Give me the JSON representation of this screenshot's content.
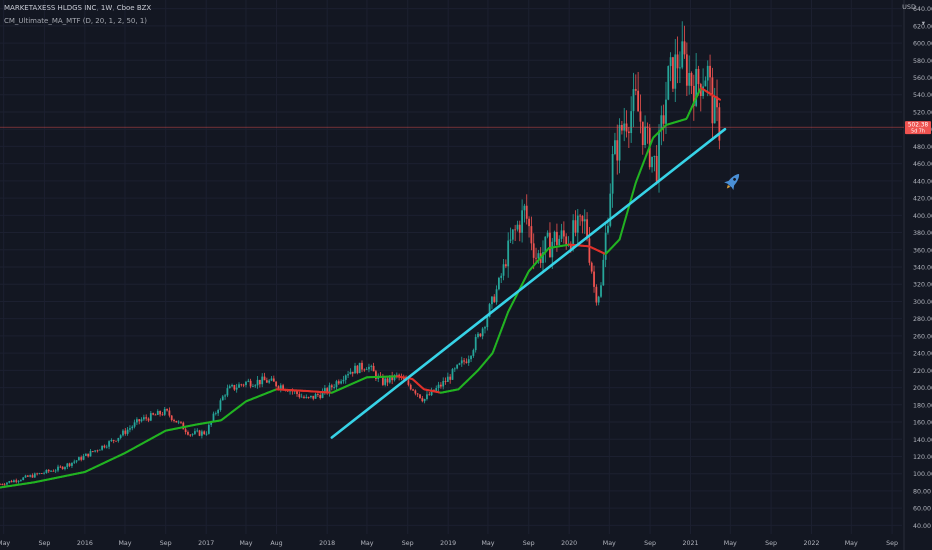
{
  "header": {
    "symbol": "MARKETAXESS HLDGS INC",
    "interval": "1W",
    "exchange": "Cboe BZX",
    "indicator": "CM_Ultimate_MA_MTF (D, 20, 1, 2, 50, 1)"
  },
  "price_axis": {
    "currency": "USD",
    "scale_control": "▾"
  },
  "colors": {
    "background": "#131722",
    "grid": "#1c2030",
    "up_candle": "#26a69a",
    "down_candle": "#ef5350",
    "ma_rising": "#22b322",
    "ma_falling": "#e0312b",
    "trendline": "#37d3e7",
    "current_price_line": "#ef5350",
    "rocket": "#4a8fd6"
  },
  "chart_data": {
    "type": "candlestick",
    "y_axis": {
      "labels": [
        "640.00",
        "620.00",
        "600.00",
        "580.00",
        "560.00",
        "540.00",
        "520.00",
        "500.00",
        "480.00",
        "460.00",
        "440.00",
        "420.00",
        "400.00",
        "380.00",
        "360.00",
        "340.00",
        "320.00",
        "300.00",
        "280.00",
        "260.00",
        "240.00",
        "220.00",
        "200.00",
        "180.00",
        "160.00",
        "140.00",
        "120.00",
        "100.00",
        "80.00",
        "60.00",
        "40.00"
      ],
      "range": [
        30,
        650
      ]
    },
    "x_axis": {
      "range": [
        "2015-04-20",
        "2022-10-01"
      ],
      "ticks": [
        {
          "date": "2015-05-01",
          "label": "May"
        },
        {
          "date": "2015-09-01",
          "label": "Sep"
        },
        {
          "date": "2016-01-01",
          "label": "2016"
        },
        {
          "date": "2016-05-01",
          "label": "May"
        },
        {
          "date": "2016-09-01",
          "label": "Sep"
        },
        {
          "date": "2017-01-01",
          "label": "2017"
        },
        {
          "date": "2017-05-01",
          "label": "May"
        },
        {
          "date": "2017-08-01",
          "label": "Aug"
        },
        {
          "date": "2018-01-01",
          "label": "2018"
        },
        {
          "date": "2018-05-01",
          "label": "May"
        },
        {
          "date": "2018-09-01",
          "label": "Sep"
        },
        {
          "date": "2019-01-01",
          "label": "2019"
        },
        {
          "date": "2019-05-01",
          "label": "May"
        },
        {
          "date": "2019-09-01",
          "label": "Sep"
        },
        {
          "date": "2020-01-01",
          "label": "2020"
        },
        {
          "date": "2020-05-01",
          "label": "May"
        },
        {
          "date": "2020-09-01",
          "label": "Sep"
        },
        {
          "date": "2021-01-01",
          "label": "2021"
        },
        {
          "date": "2021-05-01",
          "label": "May"
        },
        {
          "date": "2021-09-01",
          "label": "Sep"
        },
        {
          "date": "2022-01-01",
          "label": "2022"
        },
        {
          "date": "2022-05-01",
          "label": "May"
        },
        {
          "date": "2022-09-01",
          "label": "Sep"
        }
      ]
    },
    "price_anchors": [
      {
        "date": "2015-04-20",
        "close": 88
      },
      {
        "date": "2015-07-01",
        "close": 95
      },
      {
        "date": "2015-10-15",
        "close": 106
      },
      {
        "date": "2015-12-20",
        "close": 118
      },
      {
        "date": "2016-04-01",
        "close": 140
      },
      {
        "date": "2016-06-15",
        "close": 162
      },
      {
        "date": "2016-09-01",
        "close": 172
      },
      {
        "date": "2016-11-15",
        "close": 146
      },
      {
        "date": "2017-01-01",
        "close": 148
      },
      {
        "date": "2017-03-01",
        "close": 196
      },
      {
        "date": "2017-05-01",
        "close": 206
      },
      {
        "date": "2017-07-01",
        "close": 208
      },
      {
        "date": "2017-09-01",
        "close": 200
      },
      {
        "date": "2017-11-01",
        "close": 186
      },
      {
        "date": "2018-01-01",
        "close": 196
      },
      {
        "date": "2018-03-01",
        "close": 218
      },
      {
        "date": "2018-05-01",
        "close": 226
      },
      {
        "date": "2018-06-15",
        "close": 206
      },
      {
        "date": "2018-08-01",
        "close": 213
      },
      {
        "date": "2018-09-15",
        "close": 200
      },
      {
        "date": "2018-10-20",
        "close": 186
      },
      {
        "date": "2018-12-20",
        "close": 206
      },
      {
        "date": "2019-03-01",
        "close": 235
      },
      {
        "date": "2019-04-15",
        "close": 270
      },
      {
        "date": "2019-06-01",
        "close": 318
      },
      {
        "date": "2019-07-15",
        "close": 375
      },
      {
        "date": "2019-08-20",
        "close": 405
      },
      {
        "date": "2019-09-25",
        "close": 350
      },
      {
        "date": "2019-11-15",
        "close": 372
      },
      {
        "date": "2020-01-01",
        "close": 375
      },
      {
        "date": "2020-02-20",
        "close": 390
      },
      {
        "date": "2020-03-20",
        "close": 305
      },
      {
        "date": "2020-04-05",
        "close": 312
      },
      {
        "date": "2020-05-10",
        "close": 460
      },
      {
        "date": "2020-06-15",
        "close": 510
      },
      {
        "date": "2020-07-20",
        "close": 530
      },
      {
        "date": "2020-08-25",
        "close": 480
      },
      {
        "date": "2020-09-20",
        "close": 455
      },
      {
        "date": "2020-10-25",
        "close": 555
      },
      {
        "date": "2020-12-01",
        "close": 585
      },
      {
        "date": "2021-01-15",
        "close": 548
      },
      {
        "date": "2021-02-20",
        "close": 570
      },
      {
        "date": "2021-03-10",
        "close": 520
      },
      {
        "date": "2021-03-30",
        "close": 502
      }
    ],
    "moving_average": {
      "anchors": [
        {
          "date": "2015-04-20",
          "value": 84
        },
        {
          "date": "2015-08-01",
          "value": 90
        },
        {
          "date": "2016-01-01",
          "value": 102
        },
        {
          "date": "2016-05-01",
          "value": 124
        },
        {
          "date": "2016-09-01",
          "value": 150
        },
        {
          "date": "2016-12-01",
          "value": 157
        },
        {
          "date": "2017-02-15",
          "value": 162
        },
        {
          "date": "2017-05-01",
          "value": 184
        },
        {
          "date": "2017-08-01",
          "value": 198
        },
        {
          "date": "2017-11-01",
          "value": 196
        },
        {
          "date": "2018-01-15",
          "value": 194
        },
        {
          "date": "2018-05-01",
          "value": 212
        },
        {
          "date": "2018-08-01",
          "value": 213
        },
        {
          "date": "2018-09-15",
          "value": 210
        },
        {
          "date": "2018-10-20",
          "value": 198
        },
        {
          "date": "2018-12-10",
          "value": 194
        },
        {
          "date": "2019-02-01",
          "value": 198
        },
        {
          "date": "2019-04-01",
          "value": 220
        },
        {
          "date": "2019-05-15",
          "value": 240
        },
        {
          "date": "2019-07-01",
          "value": 288
        },
        {
          "date": "2019-09-01",
          "value": 335
        },
        {
          "date": "2019-11-01",
          "value": 362
        },
        {
          "date": "2020-01-01",
          "value": 366
        },
        {
          "date": "2020-03-01",
          "value": 364
        },
        {
          "date": "2020-04-20",
          "value": 355
        },
        {
          "date": "2020-06-01",
          "value": 372
        },
        {
          "date": "2020-07-20",
          "value": 438
        },
        {
          "date": "2020-09-10",
          "value": 490
        },
        {
          "date": "2020-10-20",
          "value": 505
        },
        {
          "date": "2020-12-20",
          "value": 512
        },
        {
          "date": "2021-02-01",
          "value": 548
        },
        {
          "date": "2021-03-15",
          "value": 538
        },
        {
          "date": "2021-04-01",
          "value": 534
        }
      ]
    },
    "trendline": {
      "start": {
        "date": "2018-01-15",
        "value": 142
      },
      "end": {
        "date": "2021-04-15",
        "value": 500
      }
    },
    "current_price": {
      "value": "502.38",
      "countdown": "5d 7h",
      "level": 502.38
    },
    "grid": true,
    "annotations": [
      {
        "type": "rocket-icon",
        "date": "2021-05-10",
        "value": 440
      }
    ]
  }
}
